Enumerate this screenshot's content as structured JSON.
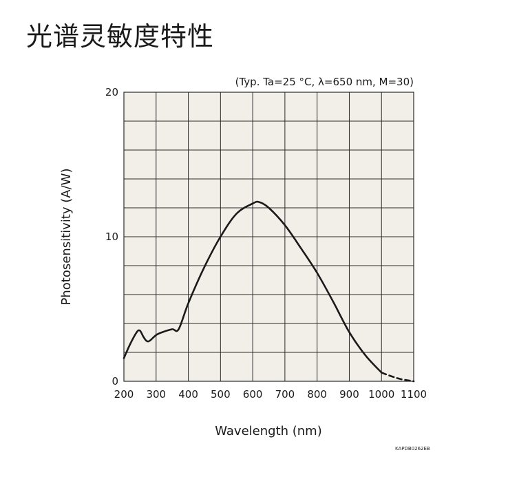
{
  "page": {
    "title": "光谱灵敏度特性",
    "code": "KAPDB0262EB"
  },
  "chart_data": {
    "type": "line",
    "conditions": "(Typ. Ta=25 °C, λ=650 nm, M=30)",
    "xlabel": "Wavelength (nm)",
    "ylabel": "Photosensitivity (A/W)",
    "xlim": [
      200,
      1100
    ],
    "ylim": [
      0,
      20
    ],
    "x_ticks": [
      200,
      300,
      400,
      500,
      600,
      700,
      800,
      900,
      1000,
      1100
    ],
    "y_ticks": [
      0,
      10,
      20
    ],
    "grid": true,
    "colors": {
      "plot_bg": "#f2efe9",
      "grid": "#2b2b2b",
      "line": "#1a1a1a"
    },
    "series": [
      {
        "style": "solid",
        "x": [
          200,
          220,
          240,
          250,
          260,
          270,
          280,
          300,
          320,
          350,
          370,
          400,
          450,
          500,
          550,
          600,
          620,
          650,
          700,
          750,
          800,
          850,
          900,
          950,
          1000
        ],
        "y": [
          1.6,
          2.6,
          3.4,
          3.5,
          3.1,
          2.8,
          2.8,
          3.2,
          3.4,
          3.6,
          3.6,
          5.4,
          7.9,
          10.0,
          11.6,
          12.3,
          12.4,
          12.0,
          10.8,
          9.2,
          7.5,
          5.5,
          3.4,
          1.8,
          0.6
        ]
      },
      {
        "style": "dashed",
        "x": [
          1000,
          1030,
          1060,
          1100
        ],
        "y": [
          0.6,
          0.35,
          0.15,
          0.0
        ]
      }
    ]
  }
}
